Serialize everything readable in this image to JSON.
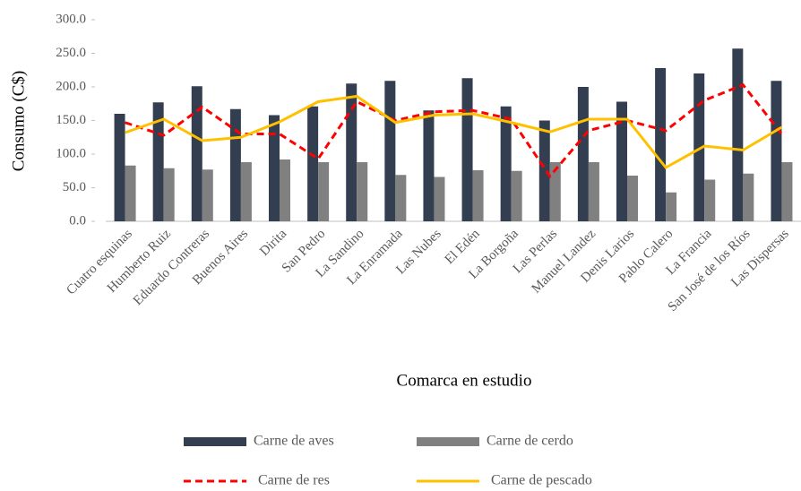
{
  "chart_data": {
    "type": "bar",
    "y_label": "Consumo (C$)",
    "x_label": "Comarca en estudio",
    "categories": [
      "Cuatro esquinas",
      "Humberto Ruiz",
      "Eduardo Contreras",
      "Buenos Aires",
      "Dirita",
      "San Pedro",
      "La Sandino",
      "La Enramada",
      "Las Nubes",
      "El Edén",
      "La Borgoña",
      "Las Perlas",
      "Manuel Landez",
      "Denis Larios",
      "Pablo Calero",
      "La Francia",
      "San José de los Ríos",
      "Las Dispersas"
    ],
    "series": [
      {
        "name": "Carne de aves",
        "type": "bar",
        "color": "#333f50",
        "values": [
          160,
          177,
          201,
          167,
          158,
          171,
          205,
          209,
          165,
          213,
          171,
          150,
          200,
          178,
          228,
          220,
          257,
          209
        ]
      },
      {
        "name": "Carne de cerdo",
        "type": "bar",
        "color": "#808080",
        "values": [
          83,
          79,
          77,
          88,
          92,
          88,
          88,
          69,
          66,
          76,
          75,
          88,
          88,
          68,
          43,
          62,
          71,
          88
        ]
      },
      {
        "name": "Carne de res",
        "type": "line",
        "style": "dashed",
        "color": "#ff0000",
        "values": [
          147,
          128,
          170,
          130,
          130,
          93,
          178,
          150,
          163,
          165,
          152,
          67,
          135,
          150,
          135,
          180,
          203,
          130
        ]
      },
      {
        "name": "Carne de pescado",
        "type": "line",
        "style": "solid",
        "color": "#ffc000",
        "values": [
          132,
          152,
          120,
          125,
          148,
          178,
          186,
          147,
          158,
          160,
          147,
          133,
          152,
          152,
          80,
          112,
          106,
          140
        ]
      }
    ],
    "ylim": [
      0,
      300
    ],
    "yticks": [
      {
        "value": 0,
        "label": "0.0"
      },
      {
        "value": 50,
        "label": "50.0"
      },
      {
        "value": 100,
        "label": "100.0"
      },
      {
        "value": 150,
        "label": "150.0"
      },
      {
        "value": 200,
        "label": "200.0"
      },
      {
        "value": 250,
        "label": "250.0"
      },
      {
        "value": 300,
        "label": "300.0"
      }
    ]
  }
}
